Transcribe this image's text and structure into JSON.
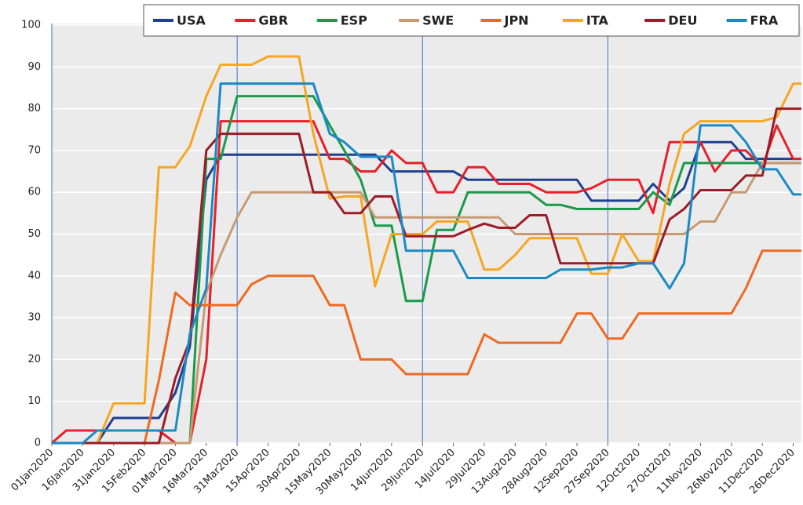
{
  "chart_data": {
    "type": "line",
    "x": [
      "01Jan2020",
      "08Jan2020",
      "16Jan2020",
      "23Jan2020",
      "31Jan2020",
      "07Feb2020",
      "15Feb2020",
      "22Feb2020",
      "01Mar2020",
      "08Mar2020",
      "16Mar2020",
      "23Mar2020",
      "31Mar2020",
      "07Apr2020",
      "15Apr2020",
      "22Apr2020",
      "30Apr2020",
      "07May2020",
      "15May2020",
      "22May2020",
      "30May2020",
      "06Jun2020",
      "14Jun2020",
      "21Jun2020",
      "29Jun2020",
      "06Jul2020",
      "14Jul2020",
      "21Jul2020",
      "29Jul2020",
      "05Aug2020",
      "13Aug2020",
      "20Aug2020",
      "28Aug2020",
      "04Sep2020",
      "12Sep2020",
      "19Sep2020",
      "27Sep2020",
      "04Oct2020",
      "12Oct2020",
      "19Oct2020",
      "27Oct2020",
      "03Nov2020",
      "11Nov2020",
      "18Nov2020",
      "26Nov2020",
      "03Dec2020",
      "11Dec2020",
      "18Dec2020",
      "26Dec2020",
      "30Dec2020"
    ],
    "series": [
      {
        "name": "USA",
        "color": "#1f3f8f",
        "values": [
          0,
          0,
          0,
          0,
          6,
          6,
          6,
          6,
          12,
          23,
          63,
          69,
          69,
          69,
          69,
          69,
          69,
          69,
          69,
          69,
          69,
          69,
          65,
          65,
          65,
          65,
          65,
          63,
          63,
          63,
          63,
          63,
          63,
          63,
          63,
          58,
          58,
          58,
          58,
          62,
          58,
          61,
          72,
          72,
          72,
          68,
          68,
          68,
          68,
          68
        ]
      },
      {
        "name": "GBR",
        "color": "#e8202a",
        "values": [
          0,
          3,
          3,
          3,
          3,
          3,
          3,
          3,
          0,
          0,
          20,
          77,
          77,
          77,
          77,
          77,
          77,
          77,
          68,
          68,
          65,
          65,
          70,
          67,
          67,
          60,
          60,
          66,
          66,
          62,
          62,
          62,
          60,
          60,
          60,
          61,
          63,
          63,
          63,
          55,
          72,
          72,
          72,
          65,
          70,
          70,
          66,
          76,
          68,
          68
        ]
      },
      {
        "name": "ESP",
        "color": "#1a9a4a",
        "values": [
          0,
          0,
          0,
          0,
          0,
          0,
          0,
          0,
          0,
          0,
          68,
          68,
          83,
          83,
          83,
          83,
          83,
          83,
          76,
          70,
          63,
          52,
          52,
          34,
          34,
          51,
          51,
          60,
          60,
          60,
          60,
          60,
          57,
          57,
          56,
          56,
          56,
          56,
          56,
          60,
          57,
          67,
          67,
          67,
          67,
          67,
          67,
          67,
          67,
          67
        ]
      },
      {
        "name": "SWE",
        "color": "#c89a74",
        "values": [
          0,
          0,
          0,
          0,
          0,
          0,
          0,
          0,
          0,
          0,
          36,
          45,
          54,
          60,
          60,
          60,
          60,
          60,
          60,
          60,
          60,
          54,
          54,
          54,
          54,
          54,
          54,
          54,
          54,
          54,
          50,
          50,
          50,
          50,
          50,
          50,
          50,
          50,
          50,
          50,
          50,
          50,
          53,
          53,
          60,
          60,
          67,
          67,
          67,
          67
        ]
      },
      {
        "name": "JPN",
        "color": "#ee6a22",
        "values": [
          0,
          0,
          0,
          0,
          0,
          0,
          0,
          15,
          36,
          33,
          33,
          33,
          33,
          38,
          40,
          40,
          40,
          40,
          33,
          33,
          20,
          20,
          20,
          16.5,
          16.5,
          16.5,
          16.5,
          16.5,
          26,
          24,
          24,
          24,
          24,
          24,
          31,
          31,
          25,
          25,
          31,
          31,
          31,
          31,
          31,
          31,
          31,
          37,
          46,
          46,
          46,
          46
        ]
      },
      {
        "name": "ITA",
        "color": "#f6a623",
        "values": [
          0,
          0,
          0,
          0,
          9.5,
          9.5,
          9.5,
          66,
          66,
          71,
          83,
          90.5,
          90.5,
          90.5,
          92.5,
          92.5,
          92.5,
          74,
          58.5,
          59,
          59,
          37.5,
          50,
          50,
          50,
          53,
          53,
          53,
          41.5,
          41.5,
          45,
          49,
          49,
          49,
          49,
          40.5,
          40.5,
          50,
          43.5,
          43.5,
          62,
          74,
          77,
          77,
          77,
          77,
          77,
          78,
          86,
          86
        ]
      },
      {
        "name": "DEU",
        "color": "#9b1c26",
        "values": [
          0,
          0,
          0,
          0,
          0,
          0,
          0,
          0,
          15.5,
          24.5,
          70,
          74,
          74,
          74,
          74,
          74,
          74,
          60,
          60,
          55,
          55,
          59,
          59,
          49.5,
          49.5,
          49.5,
          49.5,
          51,
          52.5,
          51.5,
          51.5,
          54.5,
          54.5,
          43,
          43,
          43,
          43,
          43,
          43,
          43,
          53.5,
          56,
          60.5,
          60.5,
          60.5,
          64,
          64,
          80,
          80,
          80
        ]
      },
      {
        "name": "FRA",
        "color": "#1b8ac4",
        "values": [
          0,
          0,
          0,
          3,
          3,
          3,
          3,
          3,
          3,
          26,
          37,
          86,
          86,
          86,
          86,
          86,
          86,
          86,
          74,
          72,
          68.5,
          68.5,
          68.5,
          46,
          46,
          46,
          46,
          39.5,
          39.5,
          39.5,
          39.5,
          39.5,
          39.5,
          41.5,
          41.5,
          41.5,
          42,
          42,
          43,
          43,
          37,
          43,
          76,
          76,
          76,
          72,
          65.5,
          65.5,
          59.5,
          59.5
        ]
      }
    ],
    "xlim": [
      "01Jan2020",
      "30Dec2020"
    ],
    "xticks": [
      "01Jan2020",
      "16Jan2020",
      "31Jan2020",
      "15Feb2020",
      "01Mar2020",
      "16Mar2020",
      "31Mar2020",
      "15Apr2020",
      "30Apr2020",
      "15May2020",
      "30May2020",
      "14Jun2020",
      "29Jun2020",
      "14Jul2020",
      "29Jul2020",
      "13Aug2020",
      "28Aug2020",
      "12Sep2020",
      "27Sep2020",
      "12Oct2020",
      "27Oct2020",
      "11Nov2020",
      "26Nov2020",
      "11Dec2020",
      "26Dec2020"
    ],
    "ylim": [
      0,
      100
    ],
    "yticks": [
      0,
      10,
      20,
      30,
      40,
      50,
      60,
      70,
      80,
      90,
      100
    ],
    "vlines": [
      "31Mar2020",
      "29Jun2020",
      "27Sep2020"
    ],
    "grid": true,
    "legend": "top-right"
  }
}
